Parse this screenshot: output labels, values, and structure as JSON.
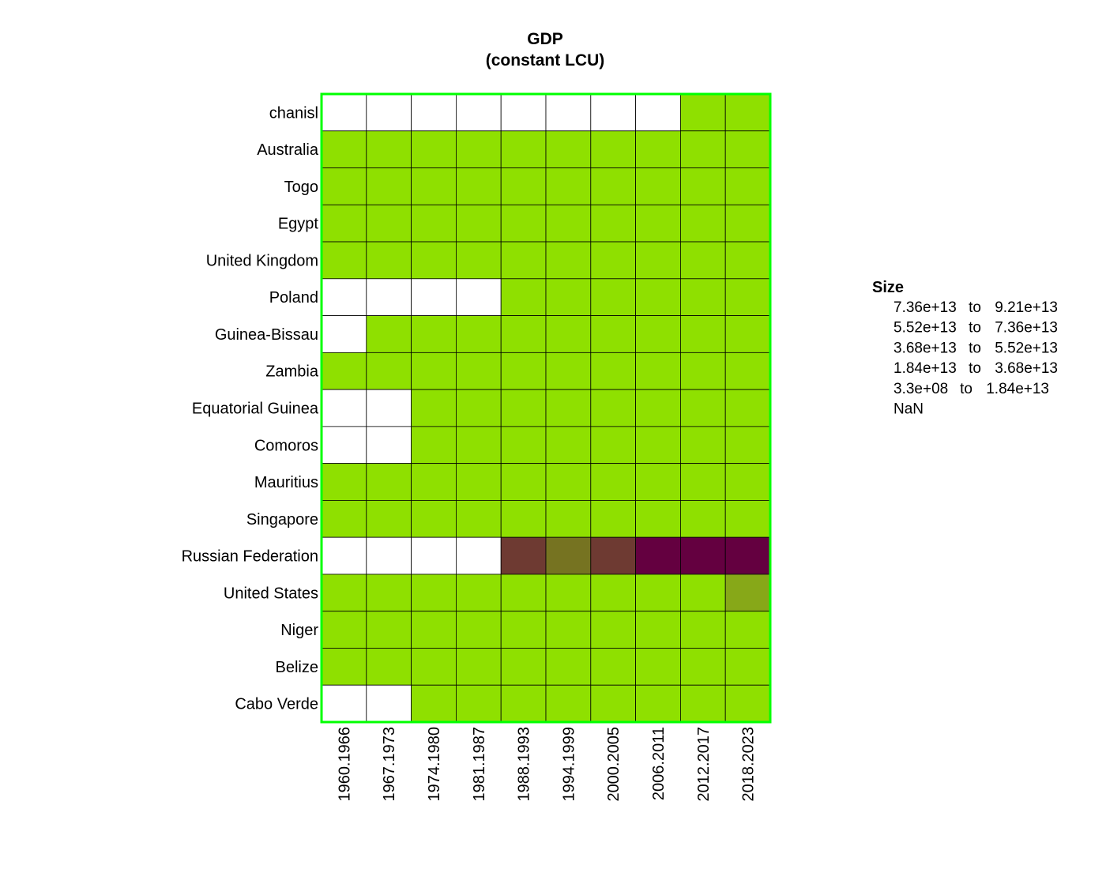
{
  "chart_data": {
    "type": "heatmap",
    "title": [
      "GDP",
      "(constant LCU)"
    ],
    "rows": [
      "chanisl",
      "Australia",
      "Togo",
      "Egypt",
      "United Kingdom",
      "Poland",
      "Guinea-Bissau",
      "Zambia",
      "Equatorial Guinea",
      "Comoros",
      "Mauritius",
      "Singapore",
      "Russian Federation",
      "United States",
      "Niger",
      "Belize",
      "Cabo Verde"
    ],
    "columns": [
      "1960.1966",
      "1967.1973",
      "1974.1980",
      "1981.1987",
      "1988.1993",
      "1994.1999",
      "2000.2005",
      "2006.2011",
      "2012.2017",
      "2018.2023"
    ],
    "bin_index_note": "0 = NaN, 1 = 3.3e+08 to 1.84e+13, 2 = 1.84e+13 to 3.68e+13, 3 = 3.68e+13 to 5.52e+13, 4 = 5.52e+13 to 7.36e+13, 5 = 7.36e+13 to 9.21e+13",
    "cells": [
      [
        0,
        0,
        0,
        0,
        0,
        0,
        0,
        0,
        1,
        1
      ],
      [
        1,
        1,
        1,
        1,
        1,
        1,
        1,
        1,
        1,
        1
      ],
      [
        1,
        1,
        1,
        1,
        1,
        1,
        1,
        1,
        1,
        1
      ],
      [
        1,
        1,
        1,
        1,
        1,
        1,
        1,
        1,
        1,
        1
      ],
      [
        1,
        1,
        1,
        1,
        1,
        1,
        1,
        1,
        1,
        1
      ],
      [
        0,
        0,
        0,
        0,
        1,
        1,
        1,
        1,
        1,
        1
      ],
      [
        0,
        1,
        1,
        1,
        1,
        1,
        1,
        1,
        1,
        1
      ],
      [
        1,
        1,
        1,
        1,
        1,
        1,
        1,
        1,
        1,
        1
      ],
      [
        0,
        0,
        1,
        1,
        1,
        1,
        1,
        1,
        1,
        1
      ],
      [
        0,
        0,
        1,
        1,
        1,
        1,
        1,
        1,
        1,
        1
      ],
      [
        1,
        1,
        1,
        1,
        1,
        1,
        1,
        1,
        1,
        1
      ],
      [
        1,
        1,
        1,
        1,
        1,
        1,
        1,
        1,
        1,
        1
      ],
      [
        0,
        0,
        0,
        0,
        4,
        3,
        4,
        5,
        5,
        5
      ],
      [
        1,
        1,
        1,
        1,
        1,
        1,
        1,
        1,
        1,
        2
      ],
      [
        1,
        1,
        1,
        1,
        1,
        1,
        1,
        1,
        1,
        1
      ],
      [
        1,
        1,
        1,
        1,
        1,
        1,
        1,
        1,
        1,
        1
      ],
      [
        0,
        0,
        1,
        1,
        1,
        1,
        1,
        1,
        1,
        1
      ]
    ],
    "bin_colors": [
      "#ffffff",
      "#8fe000",
      "#87a818",
      "#767321",
      "#6e3a32",
      "#640040"
    ],
    "frame_color": "#00ff00",
    "legend": {
      "title": "Size",
      "entries": [
        {
          "from": "7.36e+13",
          "sep": "to",
          "to": "9.21e+13"
        },
        {
          "from": "5.52e+13",
          "sep": "to",
          "to": "7.36e+13"
        },
        {
          "from": "3.68e+13",
          "sep": "to",
          "to": "5.52e+13"
        },
        {
          "from": "1.84e+13",
          "sep": "to",
          "to": "3.68e+13"
        },
        {
          "from": "3.3e+08",
          "sep": "to",
          "to": "1.84e+13"
        },
        {
          "from": "NaN",
          "sep": "",
          "to": ""
        }
      ]
    }
  }
}
